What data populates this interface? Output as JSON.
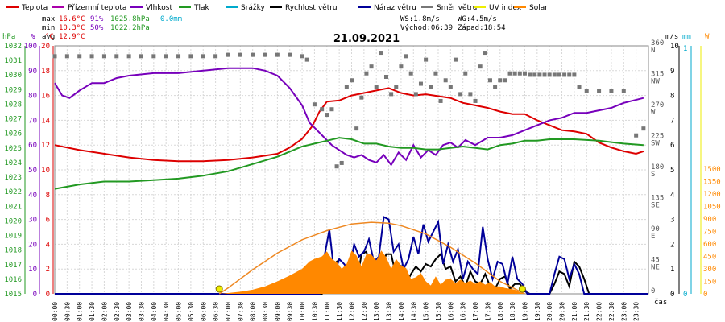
{
  "legend": [
    {
      "label": "Teplota",
      "color": "#dd0000"
    },
    {
      "label": "Přízemní teplota",
      "color": "#aa00aa"
    },
    {
      "label": "Vlhkost",
      "color": "#7700bb"
    },
    {
      "label": "Tlak",
      "color": "#229922"
    },
    {
      "label": "Srážky",
      "color": "#00aacc"
    },
    {
      "label": "Rychlost větru",
      "color": "#000000"
    },
    {
      "label": "Náraz větru",
      "color": "#000099"
    },
    {
      "label": "Směr větru",
      "color": "#777777"
    },
    {
      "label": "UV index",
      "color": "#eeee00"
    },
    {
      "label": "Solar",
      "color": "#ff8800"
    }
  ],
  "stats": {
    "max_label": "max",
    "max_temp": "16.6°C",
    "max_hum": "91%",
    "max_press": "1025.8hPa",
    "rain": "0.0mm",
    "min_label": "min",
    "min_temp": "10.3°C",
    "min_hum": "50%",
    "min_press": "1022.2hPa",
    "avg_label": "avg",
    "avg_temp": "12.9°C",
    "ws": "WS:1.8m/s",
    "wg": "WG:4.5m/s",
    "sunrise": "Východ:06:39",
    "sunset": "Západ:18:54"
  },
  "date": "21.09.2021",
  "axis_titles": {
    "press": "hPa",
    "hum": "%",
    "temp": "°C",
    "wind": "m/s",
    "rain": "mm",
    "solar": "W",
    "time": "čas"
  },
  "axes": {
    "press_ticks": [
      1015,
      1016,
      1017,
      1018,
      1019,
      1020,
      1021,
      1022,
      1023,
      1024,
      1025,
      1026,
      1027,
      1028,
      1029,
      1030,
      1031,
      1032
    ],
    "hum_ticks": [
      0,
      10,
      20,
      30,
      40,
      50,
      60,
      70,
      80,
      90,
      100
    ],
    "temp_ticks": [
      0,
      2,
      4,
      6,
      8,
      10,
      12,
      14,
      16,
      18,
      20
    ],
    "dir_ticks": [
      "0",
      "45",
      "90",
      "135",
      "180",
      "225",
      "270",
      "315",
      "360"
    ],
    "dir_labels": [
      "",
      "NE",
      "E",
      "SE",
      "S",
      "SW",
      "W",
      "NW",
      "N"
    ],
    "wind_ticks": [
      0,
      1,
      2,
      3,
      4,
      5,
      6,
      7,
      8,
      9,
      10
    ],
    "rain_ticks": [
      "0",
      "1"
    ],
    "solar_ticks": [
      0,
      150,
      300,
      450,
      600,
      750,
      900,
      1050,
      1200,
      1350,
      1500
    ],
    "time_ticks": [
      "00:00",
      "00:30",
      "01:00",
      "01:30",
      "02:00",
      "02:30",
      "03:00",
      "03:30",
      "04:00",
      "04:30",
      "05:00",
      "05:30",
      "06:00",
      "06:30",
      "07:00",
      "07:30",
      "08:00",
      "08:30",
      "09:00",
      "09:30",
      "10:00",
      "10:30",
      "11:00",
      "11:30",
      "12:00",
      "12:30",
      "13:00",
      "13:30",
      "14:00",
      "14:30",
      "15:00",
      "15:30",
      "16:00",
      "16:30",
      "17:00",
      "17:30",
      "18:00",
      "18:30",
      "19:00",
      "19:30",
      "20:00",
      "20:30",
      "21:00",
      "21:30",
      "22:00",
      "22:30",
      "23:00",
      "23:30"
    ]
  },
  "chart_data": {
    "type": "line",
    "title": "21.09.2021",
    "x_unit": "hour of day",
    "xlim": [
      0,
      24
    ],
    "series": [
      {
        "name": "Teplota",
        "unit": "°C",
        "axis": "temp",
        "x": [
          0,
          1,
          2,
          3,
          4,
          5,
          6,
          7,
          8,
          9,
          9.5,
          10,
          10.4,
          10.7,
          11,
          11.5,
          12,
          12.5,
          13,
          13.5,
          14,
          14.5,
          15,
          16,
          16.5,
          17,
          17.5,
          18,
          18.5,
          19,
          19.5,
          20,
          20.5,
          21,
          21.5,
          22,
          22.5,
          23,
          23.5,
          23.8
        ],
        "y": [
          12.0,
          11.6,
          11.3,
          11.0,
          10.8,
          10.7,
          10.7,
          10.8,
          11.0,
          11.3,
          11.8,
          12.5,
          13.5,
          14.7,
          15.5,
          15.6,
          16.0,
          16.2,
          16.4,
          16.6,
          16.2,
          16.0,
          16.1,
          15.8,
          15.4,
          15.2,
          15.0,
          14.7,
          14.5,
          14.5,
          14.0,
          13.6,
          13.2,
          13.1,
          12.9,
          12.2,
          11.8,
          11.5,
          11.3,
          11.5
        ]
      },
      {
        "name": "Vlhkost",
        "unit": "%",
        "axis": "hum",
        "x": [
          0,
          0.3,
          0.6,
          1,
          1.5,
          2,
          2.5,
          3,
          4,
          5,
          6,
          7,
          8,
          8.5,
          9,
          9.5,
          10,
          10.3,
          10.6,
          10.9,
          11.2,
          11.5,
          11.8,
          12.1,
          12.4,
          12.7,
          13,
          13.3,
          13.6,
          13.9,
          14.2,
          14.5,
          14.8,
          15.1,
          15.4,
          15.7,
          16,
          16.3,
          16.6,
          17,
          17.5,
          18,
          18.5,
          19,
          19.5,
          20,
          20.5,
          21,
          21.5,
          22,
          22.5,
          23,
          23.8
        ],
        "y": [
          85,
          80,
          79,
          82,
          85,
          85,
          87,
          88,
          89,
          89,
          90,
          91,
          91,
          90,
          88,
          83,
          76,
          69,
          66,
          63,
          60,
          58,
          56,
          55,
          56,
          54,
          53,
          56,
          52,
          57,
          54,
          60,
          55,
          58,
          56,
          60,
          61,
          59,
          62,
          60,
          63,
          63,
          64,
          66,
          68,
          70,
          71,
          73,
          73,
          74,
          75,
          77,
          79
        ]
      },
      {
        "name": "Tlak",
        "unit": "hPa",
        "axis": "press",
        "x": [
          0,
          1,
          2,
          3,
          4,
          5,
          6,
          7,
          8,
          9,
          10,
          10.5,
          11,
          11.5,
          12,
          12.5,
          13,
          13.5,
          14,
          14.5,
          15,
          15.5,
          16,
          16.5,
          17,
          17.5,
          18,
          18.5,
          19,
          19.5,
          20,
          21,
          22,
          23,
          23.8
        ],
        "y": [
          1022.2,
          1022.5,
          1022.7,
          1022.7,
          1022.8,
          1022.9,
          1023.1,
          1023.4,
          1023.9,
          1024.4,
          1025.1,
          1025.3,
          1025.5,
          1025.7,
          1025.6,
          1025.3,
          1025.3,
          1025.1,
          1025.0,
          1025.0,
          1024.9,
          1024.9,
          1025.0,
          1025.1,
          1025.0,
          1024.9,
          1025.2,
          1025.3,
          1025.5,
          1025.5,
          1025.6,
          1025.6,
          1025.5,
          1025.3,
          1025.2
        ]
      },
      {
        "name": "Směr větru",
        "unit": "°",
        "axis": "dir",
        "style": "points",
        "x": [
          0,
          0.5,
          1,
          1.5,
          2,
          2.5,
          3,
          3.5,
          4,
          4.5,
          5,
          5.5,
          6,
          6.5,
          7,
          7.5,
          8,
          8.5,
          9,
          9.5,
          10,
          10.2,
          10.5,
          10.8,
          11,
          11.2,
          11.4,
          11.6,
          11.8,
          12,
          12.2,
          12.4,
          12.6,
          12.8,
          13,
          13.2,
          13.4,
          13.6,
          13.8,
          14,
          14.2,
          14.4,
          14.6,
          14.8,
          15,
          15.2,
          15.4,
          15.6,
          15.8,
          16,
          16.2,
          16.4,
          16.6,
          16.8,
          17,
          17.2,
          17.4,
          17.6,
          17.8,
          18,
          18.2,
          18.4,
          18.6,
          18.8,
          19,
          19.2,
          19.4,
          19.6,
          19.8,
          20,
          20.2,
          20.4,
          20.6,
          20.8,
          21,
          21.2,
          21.5,
          22,
          22.5,
          23,
          23.5,
          23.8
        ],
        "y": [
          345,
          345,
          345,
          345,
          345,
          345,
          345,
          345,
          345,
          345,
          345,
          345,
          345,
          345,
          347,
          347,
          347,
          347,
          347,
          347,
          345,
          340,
          275,
          268,
          260,
          268,
          185,
          190,
          300,
          310,
          240,
          285,
          320,
          330,
          300,
          350,
          315,
          290,
          300,
          330,
          345,
          320,
          290,
          305,
          340,
          300,
          320,
          280,
          310,
          300,
          340,
          290,
          320,
          290,
          280,
          330,
          350,
          310,
          300,
          310,
          310,
          320,
          320,
          320,
          320,
          318,
          318,
          318,
          318,
          318,
          318,
          318,
          318,
          318,
          318,
          300,
          295,
          295,
          295,
          295,
          230,
          240
        ]
      },
      {
        "name": "Rychlost větru",
        "unit": "m/s",
        "axis": "wind",
        "x": [
          0,
          10.8,
          11,
          11.2,
          11.4,
          11.6,
          11.8,
          12,
          12.2,
          12.4,
          12.6,
          12.8,
          13,
          13.2,
          13.4,
          13.6,
          13.8,
          14,
          14.2,
          14.4,
          14.6,
          14.8,
          15,
          15.2,
          15.4,
          15.6,
          15.8,
          16,
          16.2,
          16.4,
          16.6,
          16.8,
          17,
          17.2,
          17.4,
          17.6,
          17.8,
          18,
          18.2,
          18.4,
          18.6,
          18.8,
          19,
          19.2,
          19.4,
          20,
          20.2,
          20.4,
          20.6,
          20.8,
          21,
          21.2,
          21.4,
          21.6,
          24
        ],
        "y": [
          0,
          0,
          0.5,
          1.1,
          1.3,
          0.6,
          1.0,
          1.2,
          0.4,
          1.6,
          1.7,
          0.8,
          1.2,
          1.0,
          1.6,
          1.6,
          0.7,
          1.1,
          0.4,
          0.8,
          1.1,
          0.9,
          1.2,
          1.1,
          1.4,
          1.6,
          1.0,
          1.1,
          0.5,
          0.7,
          0.3,
          0.9,
          0.5,
          0.4,
          0.8,
          0.3,
          0.2,
          0.6,
          0.7,
          0.2,
          0.4,
          0.4,
          0.1,
          0,
          0,
          0,
          0.4,
          0.9,
          0.8,
          0.3,
          1.3,
          1.1,
          0.6,
          0,
          0
        ]
      },
      {
        "name": "Náraz větru",
        "unit": "m/s",
        "axis": "wind",
        "x": [
          0,
          10.7,
          10.9,
          11.1,
          11.3,
          11.5,
          11.7,
          11.9,
          12.1,
          12.3,
          12.5,
          12.7,
          12.9,
          13.1,
          13.3,
          13.5,
          13.7,
          13.9,
          14.1,
          14.3,
          14.5,
          14.7,
          14.9,
          15.1,
          15.3,
          15.5,
          15.7,
          15.9,
          16.1,
          16.3,
          16.5,
          16.7,
          16.9,
          17.1,
          17.3,
          17.5,
          17.7,
          17.9,
          18.1,
          18.3,
          18.5,
          18.7,
          18.9,
          19.1,
          19.3,
          20,
          20.2,
          20.4,
          20.6,
          20.8,
          21,
          21.2,
          21.4,
          24
        ],
        "y": [
          0,
          0,
          1.5,
          2.6,
          0.8,
          1.4,
          1.2,
          0.9,
          2.0,
          1.5,
          1.7,
          2.2,
          1.3,
          1.5,
          3.1,
          3.0,
          1.7,
          2.0,
          1.0,
          1.4,
          2.3,
          1.6,
          2.8,
          2.1,
          2.5,
          2.9,
          1.2,
          2.0,
          1.3,
          1.8,
          0.6,
          1.3,
          1.0,
          0.8,
          2.7,
          1.4,
          0.6,
          1.3,
          1.2,
          0.4,
          1.5,
          0.6,
          0.4,
          0,
          0,
          0,
          0.8,
          1.5,
          1.4,
          0.6,
          1.2,
          0.8,
          0,
          0
        ]
      },
      {
        "name": "Solar",
        "unit": "W/m²",
        "axis": "solar",
        "style": "area",
        "x": [
          6.7,
          7,
          7.5,
          8,
          8.5,
          9,
          9.5,
          10,
          10.3,
          10.5,
          10.8,
          11,
          11.2,
          11.4,
          11.6,
          11.8,
          12,
          12.2,
          12.4,
          12.6,
          12.8,
          13,
          13.2,
          13.4,
          13.6,
          13.8,
          14,
          14.2,
          14.4,
          14.6,
          14.8,
          15,
          15.2,
          15.4,
          15.6,
          15.8,
          16,
          16.2,
          16.4,
          16.6,
          16.8,
          17,
          17.2,
          17.4,
          17.6,
          17.8,
          18,
          18.2,
          18.4,
          18.6,
          18.8,
          19
        ],
        "y": [
          0,
          10,
          25,
          50,
          90,
          150,
          220,
          300,
          390,
          420,
          450,
          510,
          420,
          380,
          300,
          360,
          520,
          460,
          330,
          480,
          470,
          400,
          520,
          440,
          300,
          420,
          340,
          310,
          180,
          200,
          250,
          150,
          100,
          210,
          110,
          170,
          180,
          130,
          170,
          130,
          160,
          120,
          150,
          110,
          140,
          90,
          90,
          70,
          60,
          50,
          20,
          0
        ]
      },
      {
        "name": "Solar teoretický",
        "unit": "W/m²",
        "axis": "solar",
        "style": "line",
        "x": [
          6.65,
          7,
          8,
          9,
          10,
          11,
          12,
          12.8,
          13.5,
          14,
          15,
          16,
          17,
          18,
          19
        ],
        "y": [
          0,
          70,
          290,
          490,
          650,
          760,
          840,
          860,
          850,
          820,
          720,
          560,
          370,
          150,
          0
        ]
      },
      {
        "name": "UV index",
        "axis": "solar",
        "style": "markers",
        "x": [
          6.65,
          18.9
        ],
        "y": [
          0,
          0
        ]
      }
    ]
  }
}
